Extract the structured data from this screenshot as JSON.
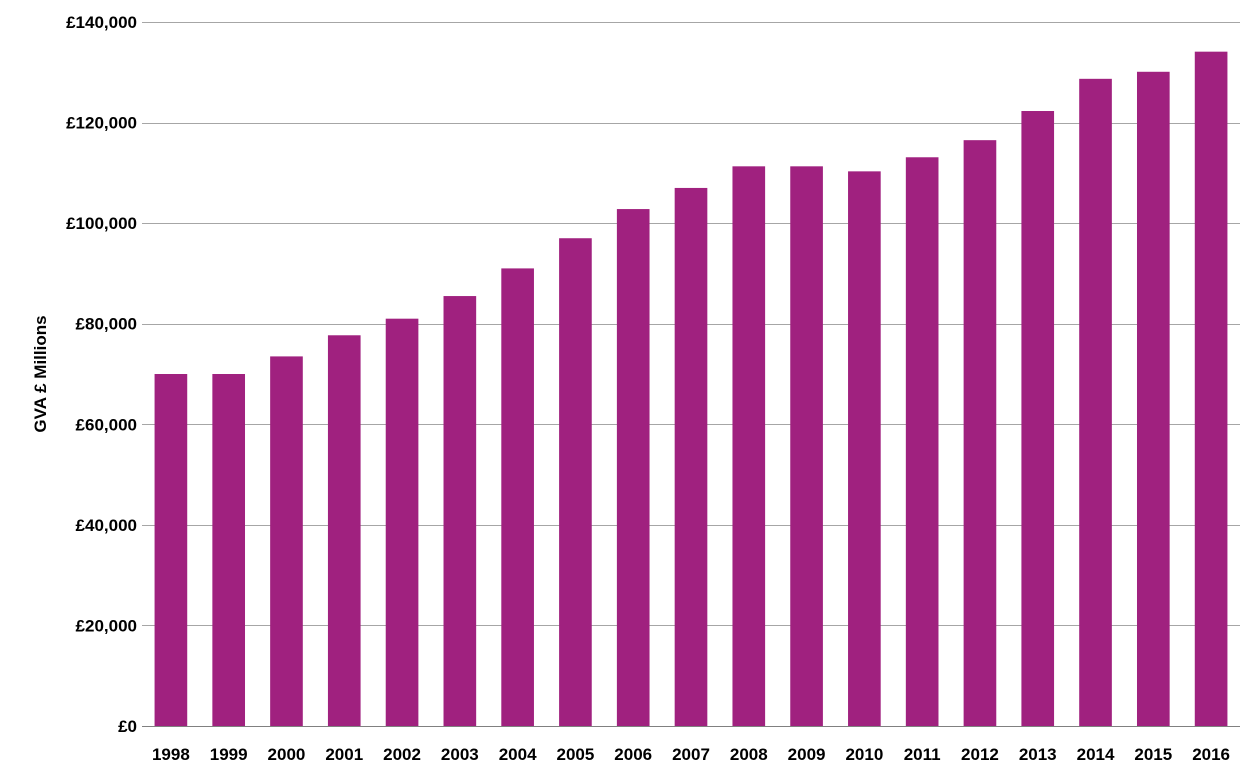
{
  "chart_data": {
    "type": "bar",
    "title": "",
    "xlabel": "",
    "ylabel": "GVA £ Millions",
    "categories": [
      "1998",
      "1999",
      "2000",
      "2001",
      "2002",
      "2003",
      "2004",
      "2005",
      "2006",
      "2007",
      "2008",
      "2009",
      "2010",
      "2011",
      "2012",
      "2013",
      "2014",
      "2015",
      "2016"
    ],
    "values": [
      70000,
      70000,
      73500,
      77700,
      81000,
      85500,
      91000,
      97000,
      102800,
      107000,
      111300,
      111300,
      110300,
      113100,
      116500,
      122300,
      128700,
      130100,
      134100
    ],
    "ylim": [
      0,
      140000
    ],
    "yticks": [
      0,
      20000,
      40000,
      60000,
      80000,
      100000,
      120000,
      140000
    ],
    "ytick_labels": [
      "£0",
      "£20,000",
      "£40,000",
      "£60,000",
      "£80,000",
      "£100,000",
      "£120,000",
      "£140,000"
    ],
    "grid": true,
    "legend": "none",
    "bar_color": "#A0217F",
    "grid_color": "#A6A6A6"
  }
}
